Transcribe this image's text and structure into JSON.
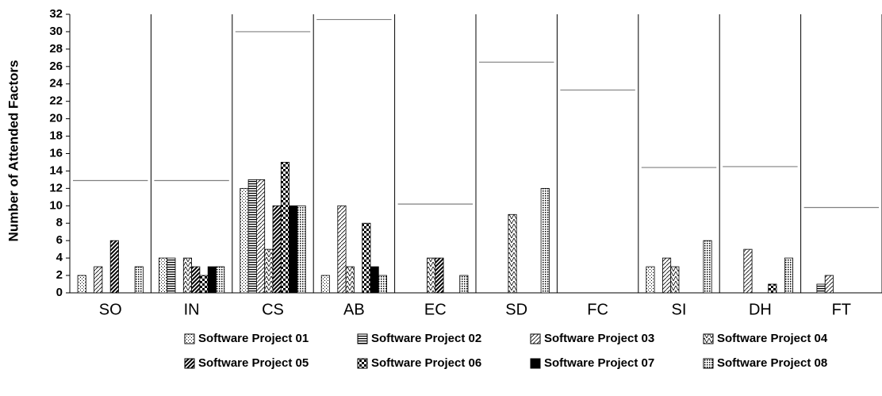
{
  "chart_data": {
    "type": "bar",
    "y_label": "Number of Attended Factors",
    "categories": [
      "SO",
      "IN",
      "CS",
      "AB",
      "EC",
      "SD",
      "FC",
      "SI",
      "DH",
      "FT"
    ],
    "series": [
      {
        "name": "Software Project 01",
        "color": "#000000",
        "values": [
          2,
          4,
          12,
          2,
          0,
          0,
          0,
          3,
          0,
          0
        ]
      },
      {
        "name": "Software Project 02",
        "color": "#000000",
        "values": [
          0,
          4,
          13,
          0,
          0,
          0,
          0,
          0,
          0,
          1
        ]
      },
      {
        "name": "Software Project 03",
        "color": "#000000",
        "values": [
          3,
          0,
          13,
          10,
          0,
          0,
          0,
          4,
          5,
          2
        ]
      },
      {
        "name": "Software Project 04",
        "color": "#000000",
        "values": [
          0,
          4,
          5,
          3,
          4,
          9,
          0,
          3,
          0,
          0
        ]
      },
      {
        "name": "Software Project 05",
        "color": "#000000",
        "values": [
          6,
          3,
          10,
          0,
          4,
          0,
          0,
          0,
          0,
          0
        ]
      },
      {
        "name": "Software Project 06",
        "color": "#000000",
        "values": [
          0,
          2,
          15,
          8,
          0,
          0,
          0,
          0,
          1,
          0
        ]
      },
      {
        "name": "Software Project 07",
        "color": "#000000",
        "values": [
          0,
          3,
          10,
          3,
          0,
          0,
          0,
          0,
          0,
          0
        ]
      },
      {
        "name": "Software Project 08",
        "color": "#000000",
        "values": [
          3,
          3,
          10,
          2,
          2,
          12,
          0,
          6,
          4,
          0
        ]
      }
    ],
    "reference": {
      "color": "#808080",
      "values": [
        12.9,
        12.9,
        30,
        31.4,
        10.2,
        26.5,
        23.3,
        14.4,
        14.5,
        9.8
      ]
    },
    "ylim": [
      0,
      32
    ],
    "yticks": [
      0,
      2,
      4,
      6,
      8,
      10,
      12,
      14,
      16,
      18,
      20,
      22,
      24,
      26,
      28,
      30,
      32
    ],
    "legend": "bottom"
  }
}
